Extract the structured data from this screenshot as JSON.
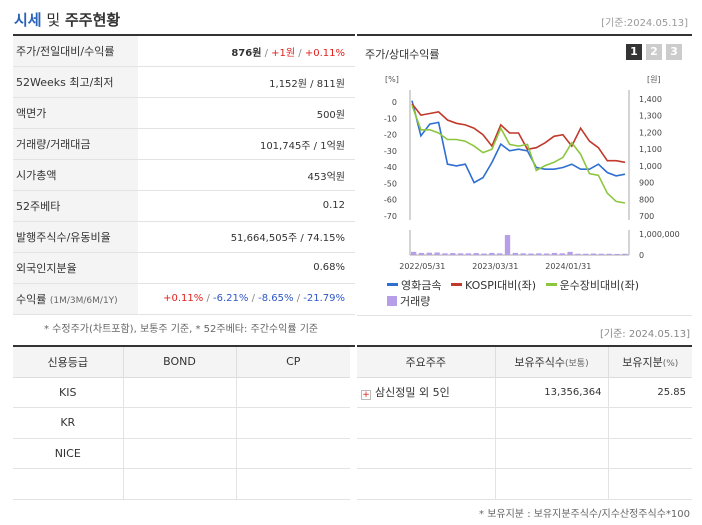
{
  "header": {
    "title_main": "시세",
    "title_and": "및",
    "title_sub": "주주현황",
    "base_date": "[기준:2024.05.13]"
  },
  "price_table": {
    "rows": [
      {
        "label": "주가/전일대비/수익률"
      },
      {
        "label": "52Weeks 최고/최저",
        "value": "1,152원 / 811원"
      },
      {
        "label": "액면가",
        "value": "500원"
      },
      {
        "label": "거래량/거래대금",
        "value": "101,745주 / 1억원"
      },
      {
        "label": "시가총액",
        "value": "453억원"
      },
      {
        "label": "52주베타",
        "value": "0.12"
      },
      {
        "label": "발행주식수/유동비율",
        "value": "51,664,505주 / 74.15%"
      },
      {
        "label": "외국인지분율",
        "value": "0.68%"
      },
      {
        "label": "수익률",
        "sub": "(1M/3M/6M/1Y)"
      }
    ],
    "price": "876원",
    "change": "+1원",
    "change_rate": "+0.11%",
    "sep": " / ",
    "returns": [
      "+0.11%",
      "-6.21%",
      "-8.65%",
      "-21.79%"
    ]
  },
  "footnote_left": "* 수정주가(차트포함), 보통주 기준, * 52주베타: 주간수익률 기준",
  "footnote_right": "[기준: 2024.05.13]",
  "chart": {
    "title": "주가/상대수익률",
    "tabs": [
      "1",
      "2",
      "3"
    ],
    "legend": [
      {
        "name": "영화금속",
        "color": "#2f6fd1"
      },
      {
        "name": "KOSPI대비(좌)",
        "color": "#c0392b"
      },
      {
        "name": "운수장비대비(좌)",
        "color": "#8cc63f"
      },
      {
        "name": "거래량",
        "color": "#b79ee8"
      }
    ]
  },
  "chart_data": {
    "type": "line",
    "x_ticks": [
      "2022/05/31",
      "2023/03/31",
      "2024/01/31"
    ],
    "left_axis": {
      "unit": "[%]",
      "ticks": [
        0,
        -10,
        -20,
        -30,
        -40,
        -50,
        -60,
        -70
      ],
      "ylim": [
        -70,
        5
      ]
    },
    "right_axis": {
      "unit": "[원]",
      "ticks": [
        1400,
        1300,
        1200,
        1100,
        1000,
        900,
        800,
        700
      ],
      "ylim": [
        700,
        1430
      ]
    },
    "volume_axis": {
      "ticks": [
        "1,000,000",
        "0"
      ],
      "ylim": [
        0,
        1000000
      ]
    },
    "series": [
      {
        "name": "영화금속",
        "axis": "right",
        "color": "#2f6fd1",
        "values": [
          1390,
          1180,
          1250,
          1260,
          1010,
          1000,
          1010,
          900,
          930,
          1020,
          1130,
          1090,
          1100,
          1090,
          990,
          980,
          980,
          990,
          1010,
          980,
          980,
          1010,
          960,
          940,
          950
        ]
      },
      {
        "name": "KOSPI대비(좌)",
        "axis": "left",
        "color": "#c0392b",
        "values": [
          -1,
          -8,
          -7,
          -6,
          -11,
          -13,
          -14,
          -16,
          -20,
          -27,
          -14,
          -19,
          -19,
          -29,
          -28,
          -25,
          -21,
          -20,
          -27,
          -16,
          -24,
          -28,
          -36,
          -36,
          -37
        ]
      },
      {
        "name": "운수장비대비(좌)",
        "axis": "left",
        "color": "#8cc63f",
        "values": [
          -2,
          -17,
          -17,
          -19,
          -23,
          -23,
          -24,
          -27,
          -31,
          -29,
          -16,
          -26,
          -27,
          -26,
          -42,
          -39,
          -37,
          -34,
          -25,
          -32,
          -44,
          -45,
          -56,
          -61,
          -62
        ]
      }
    ],
    "volume": [
      150000,
      100000,
      110000,
      120000,
      80000,
      90000,
      80000,
      80000,
      90000,
      70000,
      100000,
      80000,
      950000,
      100000,
      80000,
      70000,
      80000,
      70000,
      100000,
      80000,
      150000,
      60000,
      60000,
      70000,
      60000,
      60000,
      50000,
      60000
    ]
  },
  "credit_table": {
    "headers": [
      "신용등급",
      "BOND",
      "CP"
    ],
    "rows": [
      {
        "agency": "KIS",
        "bond": "",
        "cp": ""
      },
      {
        "agency": "KR",
        "bond": "",
        "cp": ""
      },
      {
        "agency": "NICE",
        "bond": "",
        "cp": ""
      },
      {
        "agency": "",
        "bond": "",
        "cp": ""
      }
    ]
  },
  "holders_table": {
    "headers": [
      "주요주주",
      "보유주식수",
      "보유지분"
    ],
    "header_units": [
      "",
      "(보통)",
      "(%)"
    ],
    "rows": [
      {
        "name": "삼신정밀 외 5인",
        "shares": "13,356,364",
        "pct": "25.85"
      },
      {
        "name": "",
        "shares": "",
        "pct": ""
      },
      {
        "name": "",
        "shares": "",
        "pct": ""
      },
      {
        "name": "",
        "shares": "",
        "pct": ""
      }
    ]
  },
  "footnote_bottom": "* 보유지분 : 보유지분주식수/지수산정주식수*100"
}
